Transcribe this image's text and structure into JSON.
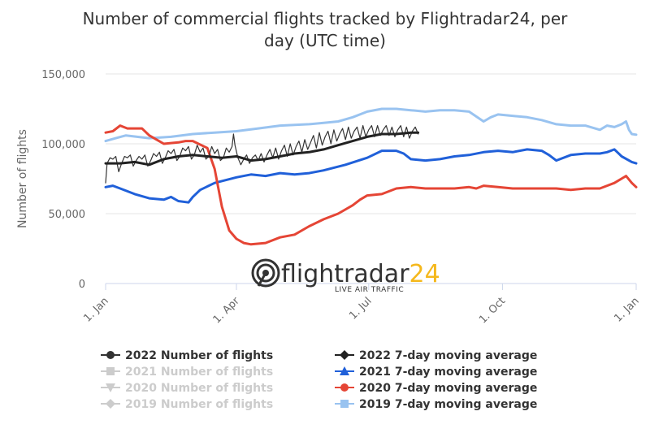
{
  "chart_data": {
    "type": "line",
    "title_line1": "Number of commercial flights tracked by Flightradar24, per",
    "title_line2": "day (UTC time)",
    "ylabel": "Number of flights",
    "ylim": [
      0,
      150000
    ],
    "yticks": [
      0,
      50000,
      100000,
      150000
    ],
    "ytick_labels": [
      "0",
      "50,000",
      "100,000",
      "150,000"
    ],
    "x_domain": [
      "1. Jan",
      "31. Dec"
    ],
    "xticks": [
      {
        "label": "1. Jan",
        "day": 0
      },
      {
        "label": "1. Apr",
        "day": 90
      },
      {
        "label": "1. Jul",
        "day": 181
      },
      {
        "label": "1. Oct",
        "day": 273
      },
      {
        "label": "1. Jan",
        "day": 365
      }
    ],
    "grid": true,
    "legend_position": "bottom",
    "watermark": {
      "brand_main": "flightradar",
      "brand_num": "24",
      "subtitle": "LIVE AIR TRAFFIC"
    },
    "series": [
      {
        "name": "2019 7-day moving average",
        "color": "#99c3f0",
        "marker": "square",
        "visible": true,
        "x": [
          0,
          7,
          14,
          30,
          45,
          60,
          75,
          90,
          105,
          120,
          140,
          150,
          160,
          170,
          180,
          190,
          200,
          210,
          220,
          230,
          240,
          250,
          260,
          265,
          270,
          280,
          290,
          300,
          310,
          320,
          330,
          340,
          345,
          350,
          355,
          358,
          360,
          362,
          365
        ],
        "y": [
          102000,
          104000,
          106000,
          104000,
          105000,
          107000,
          108000,
          109000,
          111000,
          113000,
          114000,
          115000,
          116000,
          119000,
          123000,
          125000,
          125000,
          124000,
          123000,
          124000,
          124000,
          123000,
          116000,
          119000,
          121000,
          120000,
          119000,
          117000,
          114000,
          113000,
          113000,
          110000,
          113000,
          112000,
          114000,
          116000,
          110000,
          107000,
          106500
        ]
      },
      {
        "name": "2021 7-day moving average",
        "color": "#2060d9",
        "marker": "triangle",
        "visible": true,
        "x": [
          0,
          5,
          10,
          20,
          30,
          40,
          45,
          50,
          57,
          60,
          65,
          75,
          90,
          100,
          110,
          120,
          130,
          140,
          150,
          165,
          180,
          190,
          200,
          205,
          210,
          220,
          230,
          240,
          250,
          260,
          270,
          280,
          290,
          300,
          305,
          310,
          320,
          330,
          340,
          345,
          350,
          355,
          362,
          365
        ],
        "y": [
          69000,
          70000,
          68000,
          64000,
          61000,
          60000,
          62000,
          59000,
          58000,
          62000,
          67000,
          72000,
          76000,
          78000,
          77000,
          79000,
          78000,
          79000,
          81000,
          85000,
          90000,
          95000,
          95000,
          93000,
          89000,
          88000,
          89000,
          91000,
          92000,
          94000,
          95000,
          94000,
          96000,
          95000,
          92000,
          88000,
          92000,
          93000,
          93000,
          94000,
          96000,
          91000,
          87000,
          86000
        ]
      },
      {
        "name": "2020 7-day moving average",
        "color": "#e54535",
        "marker": "circle",
        "visible": true,
        "x": [
          0,
          5,
          10,
          15,
          25,
          30,
          35,
          40,
          50,
          55,
          60,
          70,
          75,
          80,
          85,
          90,
          95,
          100,
          110,
          120,
          130,
          140,
          150,
          160,
          170,
          175,
          180,
          190,
          200,
          210,
          220,
          230,
          240,
          250,
          255,
          260,
          270,
          280,
          290,
          300,
          310,
          320,
          330,
          340,
          345,
          350,
          358,
          362,
          365
        ],
        "y": [
          108000,
          109000,
          113000,
          111000,
          111000,
          106000,
          103000,
          100000,
          101000,
          102000,
          102000,
          97000,
          82000,
          55000,
          38000,
          32000,
          29000,
          28000,
          29000,
          33000,
          35000,
          41000,
          46000,
          50000,
          56000,
          60000,
          63000,
          64000,
          68000,
          69000,
          68000,
          68000,
          68000,
          69000,
          68000,
          70000,
          69000,
          68000,
          68000,
          68000,
          68000,
          67000,
          68000,
          68000,
          70000,
          72000,
          77000,
          72000,
          69000
        ]
      },
      {
        "name": "2022 7-day moving average",
        "color": "#222222",
        "marker": "diamond",
        "visible": true,
        "x": [
          0,
          10,
          20,
          30,
          40,
          50,
          60,
          70,
          80,
          90,
          100,
          110,
          120,
          130,
          140,
          150,
          160,
          170,
          180,
          190,
          200,
          210,
          215
        ],
        "y": [
          86000,
          86000,
          87000,
          85000,
          89000,
          91000,
          92000,
          91000,
          90000,
          91000,
          88000,
          89000,
          91000,
          93000,
          94000,
          96000,
          99000,
          102000,
          105000,
          107000,
          107000,
          108000,
          108000
        ]
      },
      {
        "name": "2022 Number of flights",
        "color": "#333333",
        "marker": "circle",
        "visible": true,
        "x": [
          0,
          1,
          3,
          5,
          7,
          9,
          11,
          13,
          15,
          17,
          19,
          21,
          23,
          25,
          27,
          29,
          31,
          33,
          35,
          37,
          39,
          41,
          43,
          45,
          47,
          49,
          51,
          53,
          55,
          57,
          59,
          61,
          63,
          65,
          67,
          69,
          71,
          73,
          75,
          77,
          79,
          81,
          83,
          85,
          87,
          88,
          89,
          91,
          93,
          95,
          97,
          99,
          101,
          103,
          105,
          107,
          109,
          111,
          113,
          115,
          117,
          119,
          121,
          123,
          125,
          127,
          129,
          131,
          133,
          135,
          137,
          139,
          141,
          143,
          145,
          147,
          149,
          151,
          153,
          155,
          157,
          159,
          161,
          163,
          165,
          167,
          169,
          171,
          173,
          175,
          177,
          179,
          181,
          183,
          185,
          187,
          189,
          191,
          193,
          195,
          197,
          199,
          201,
          203,
          205,
          207,
          209,
          211,
          213,
          215
        ],
        "y": [
          72000,
          86000,
          90000,
          89000,
          91000,
          80000,
          86000,
          91000,
          90000,
          92000,
          84000,
          88000,
          91000,
          89000,
          92000,
          84000,
          88000,
          93000,
          91000,
          94000,
          86000,
          90000,
          95000,
          93000,
          96000,
          88000,
          91000,
          97000,
          95000,
          98000,
          89000,
          92000,
          99000,
          94000,
          97000,
          89000,
          91000,
          98000,
          93000,
          96000,
          88000,
          90000,
          97000,
          94000,
          98000,
          107000,
          99000,
          90000,
          85000,
          89000,
          92000,
          86000,
          90000,
          92000,
          88000,
          93000,
          87000,
          92000,
          96000,
          90000,
          97000,
          89000,
          95000,
          99000,
          91000,
          100000,
          92000,
          98000,
          102000,
          94000,
          103000,
          96000,
          101000,
          106000,
          97000,
          108000,
          99000,
          105000,
          109000,
          100000,
          110000,
          102000,
          107000,
          111000,
          103000,
          112000,
          104000,
          109000,
          112000,
          104000,
          113000,
          105000,
          110000,
          113000,
          105000,
          113000,
          106000,
          110000,
          113000,
          106000,
          112000,
          105000,
          110000,
          113000,
          105000,
          112000,
          104000,
          109000,
          112000,
          107000
        ]
      },
      {
        "name": "2021 Number of flights",
        "color": "#cccccc",
        "marker": "square",
        "visible": false
      },
      {
        "name": "2020 Number of flights",
        "color": "#cccccc",
        "marker": "triangle-down",
        "visible": false
      },
      {
        "name": "2019 Number of flights",
        "color": "#cccccc",
        "marker": "diamond",
        "visible": false
      }
    ],
    "legend_left": [
      {
        "label": "2022 Number of flights",
        "color": "#333333",
        "marker": "circle",
        "visible": true
      },
      {
        "label": "2021 Number of flights",
        "color": "#cccccc",
        "marker": "square",
        "visible": false
      },
      {
        "label": "2020 Number of flights",
        "color": "#cccccc",
        "marker": "triangle-down",
        "visible": false
      },
      {
        "label": "2019 Number of flights",
        "color": "#cccccc",
        "marker": "diamond",
        "visible": false
      }
    ],
    "legend_right": [
      {
        "label": "2022 7-day moving average",
        "color": "#222222",
        "marker": "diamond",
        "visible": true
      },
      {
        "label": "2021 7-day moving average",
        "color": "#2060d9",
        "marker": "triangle",
        "visible": true
      },
      {
        "label": "2020 7-day moving average",
        "color": "#e54535",
        "marker": "circle",
        "visible": true
      },
      {
        "label": "2019 7-day moving average",
        "color": "#99c3f0",
        "marker": "square",
        "visible": true
      }
    ]
  }
}
